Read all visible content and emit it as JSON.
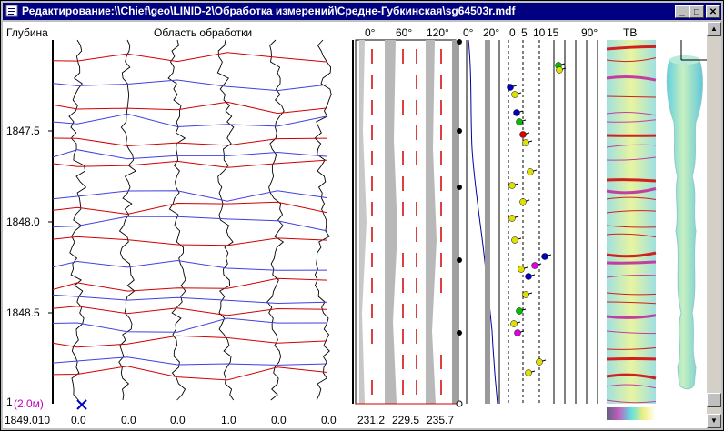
{
  "window": {
    "title": "Редактирование:\\\\Chief\\geo\\LINID-2\\Обработка измерений\\Средне-Губкинская\\sg64503r.mdf"
  },
  "headers": {
    "depth": "Глубина",
    "processing_area": "Область обработки",
    "angle_0": "0°",
    "angle_60": "60°",
    "angle_120": "120°",
    "angle_0b": "0°",
    "angle_20": "20°",
    "scale_0": "0",
    "scale_5": "5",
    "scale_10": "10",
    "scale_15": "15",
    "angle_90": "90°",
    "tv": "ТВ"
  },
  "depth_labels": [
    "1847.5",
    "1848.0",
    "1848.5"
  ],
  "bottom_left_mark": "1",
  "interval_label": "(2.0м)",
  "footer": {
    "depth_value": "1849.010",
    "channel_values": [
      "0.0",
      "0.0",
      "0.0",
      "1.0",
      "0.0",
      "0.0"
    ],
    "angle_values": [
      "231.2",
      "229.5",
      "235.7"
    ]
  },
  "colors": {
    "titlebar": "#000080",
    "sinusoid_red": "#d00000",
    "sinusoid_blue": "#4040e0",
    "interval_label": "#c000c0"
  },
  "icons": {
    "app": "document-icon",
    "minimize": "minimize-icon",
    "maximize": "maximize-icon",
    "close": "close-icon",
    "marker": "cross-marker-icon"
  }
}
